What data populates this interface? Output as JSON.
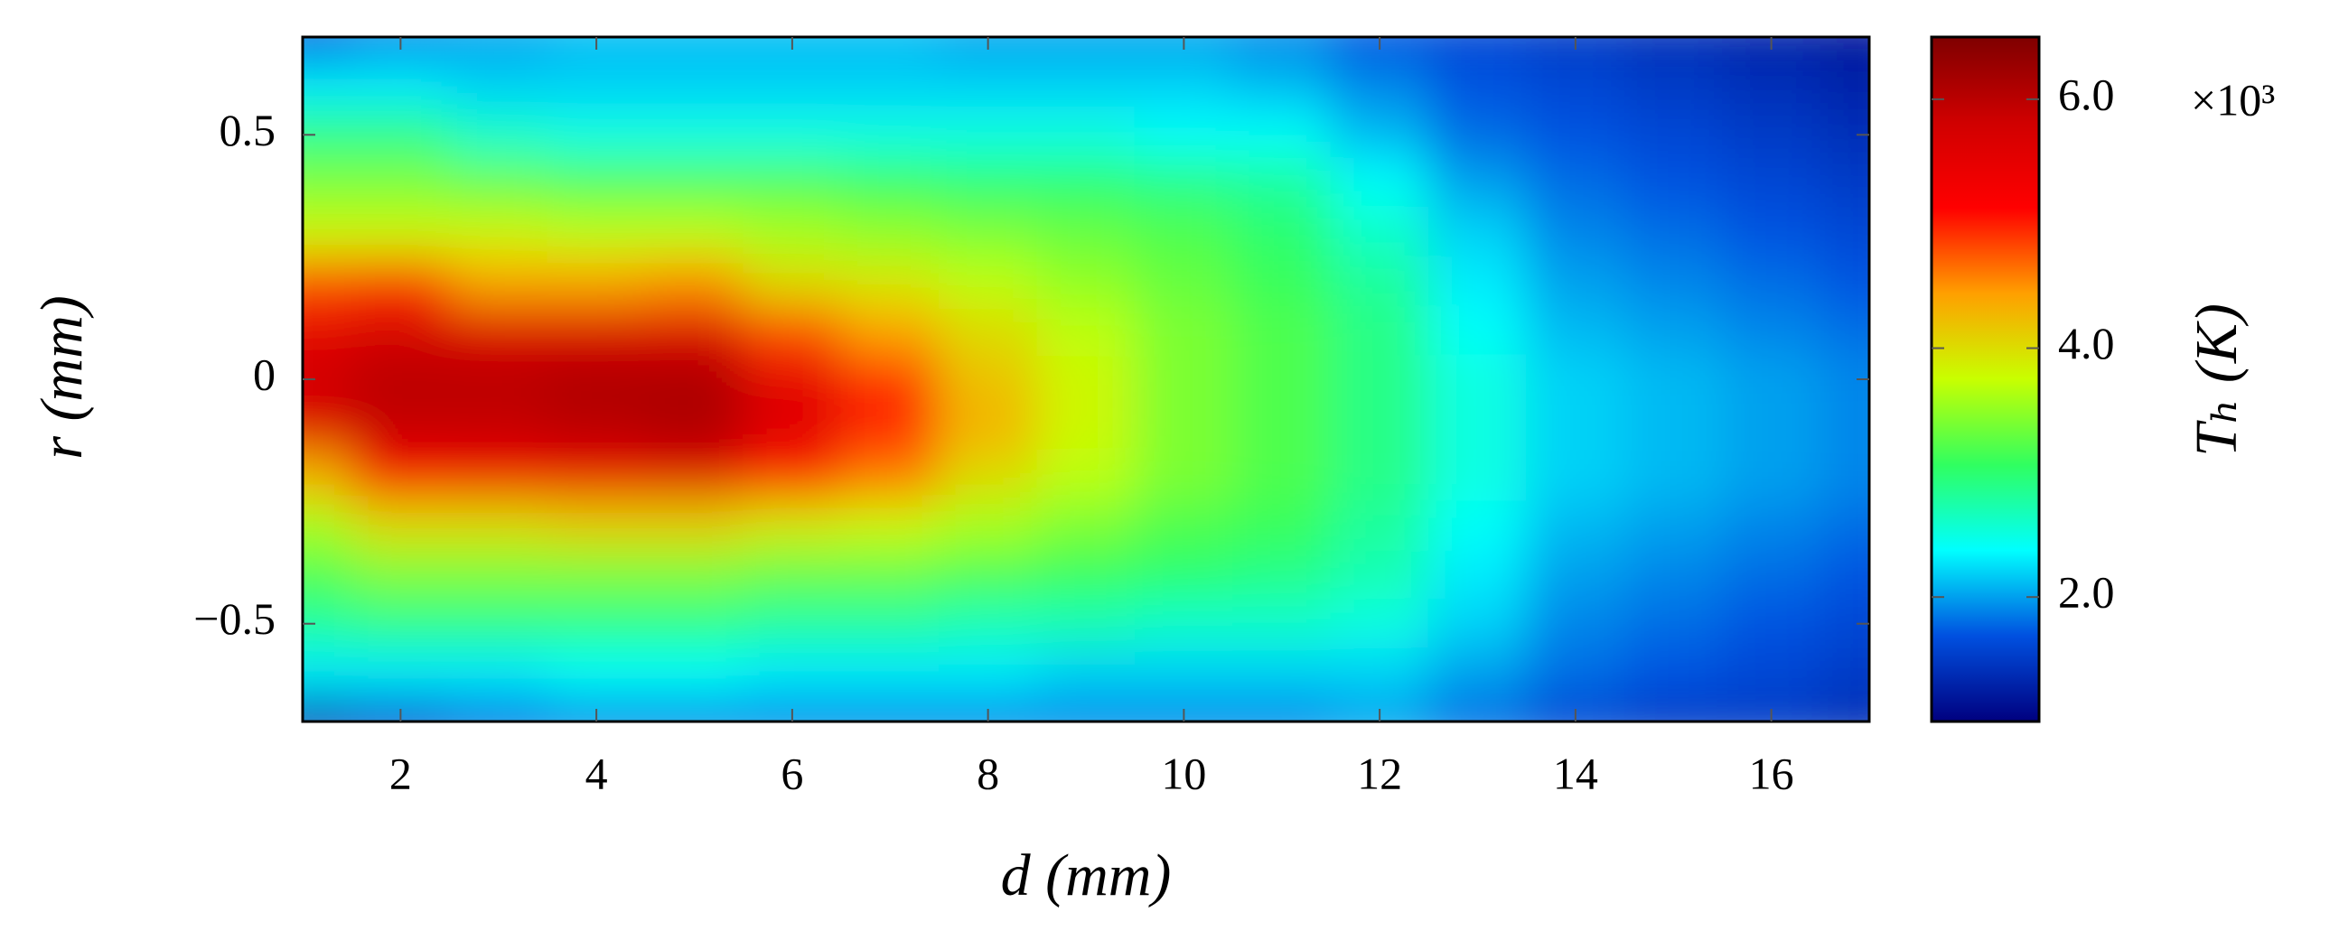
{
  "chart_data": {
    "type": "heatmap",
    "xlabel": "d (mm)",
    "ylabel": "r (mm)",
    "colorbar_label": "Tₕ (K)",
    "colorbar_multiplier": "×10³",
    "x": [
      1,
      2,
      3,
      4,
      5,
      6,
      7,
      8,
      9,
      10,
      11,
      12,
      13,
      14,
      15,
      16,
      17
    ],
    "y": [
      0.7,
      0.6,
      0.5,
      0.4,
      0.3,
      0.2,
      0.1,
      0,
      -0.1,
      -0.2,
      -0.3,
      -0.4,
      -0.5,
      -0.6,
      -0.7
    ],
    "z": [
      [
        1.7,
        1.9,
        2.0,
        2.1,
        2.1,
        2.1,
        2.1,
        2.0,
        2.0,
        2.0,
        1.9,
        1.7,
        1.6,
        1.5,
        1.4,
        1.3,
        1.2
      ],
      [
        2.3,
        2.3,
        2.2,
        2.2,
        2.2,
        2.2,
        2.2,
        2.2,
        2.2,
        2.2,
        2.1,
        1.9,
        1.7,
        1.6,
        1.5,
        1.4,
        1.3
      ],
      [
        2.9,
        2.9,
        2.6,
        2.5,
        2.5,
        2.5,
        2.5,
        2.5,
        2.5,
        2.4,
        2.4,
        2.1,
        1.8,
        1.7,
        1.6,
        1.5,
        1.4
      ],
      [
        3.4,
        3.4,
        3.3,
        3.2,
        3.2,
        3.2,
        3.1,
        3.0,
        3.0,
        2.9,
        2.8,
        2.4,
        2.0,
        1.8,
        1.7,
        1.6,
        1.5
      ],
      [
        3.8,
        3.8,
        3.8,
        3.7,
        3.7,
        3.6,
        3.5,
        3.4,
        3.3,
        3.2,
        3.0,
        2.6,
        2.2,
        1.9,
        1.8,
        1.7,
        1.6
      ],
      [
        4.8,
        4.9,
        4.4,
        4.4,
        4.5,
        4.0,
        3.9,
        3.7,
        3.5,
        3.3,
        3.1,
        2.8,
        2.3,
        2.0,
        1.9,
        1.8,
        1.7
      ],
      [
        5.5,
        5.7,
        5.6,
        5.6,
        5.6,
        4.8,
        4.4,
        4.0,
        3.7,
        3.4,
        3.2,
        2.9,
        2.4,
        2.1,
        2.0,
        1.9,
        1.8
      ],
      [
        5.8,
        6.0,
        6.0,
        6.1,
        6.1,
        5.5,
        4.9,
        4.2,
        3.8,
        3.4,
        3.2,
        2.9,
        2.5,
        2.2,
        2.1,
        2.0,
        1.9
      ],
      [
        5.6,
        5.9,
        5.9,
        6.0,
        6.1,
        5.6,
        5.0,
        4.3,
        3.8,
        3.4,
        3.2,
        2.9,
        2.5,
        2.2,
        2.1,
        2.0,
        1.9
      ],
      [
        4.3,
        5.2,
        5.3,
        5.4,
        5.5,
        5.0,
        4.6,
        4.0,
        3.7,
        3.4,
        3.2,
        2.9,
        2.5,
        2.2,
        2.1,
        2.0,
        1.9
      ],
      [
        3.6,
        4.0,
        4.0,
        4.1,
        4.1,
        3.9,
        3.8,
        3.6,
        3.4,
        3.2,
        3.1,
        2.8,
        2.4,
        2.1,
        2.0,
        1.9,
        1.8
      ],
      [
        3.2,
        3.4,
        3.4,
        3.4,
        3.4,
        3.3,
        3.3,
        3.2,
        3.1,
        3.0,
        2.9,
        2.7,
        2.3,
        2.0,
        1.9,
        1.8,
        1.7
      ],
      [
        2.8,
        2.9,
        2.9,
        2.9,
        2.9,
        2.8,
        2.8,
        2.7,
        2.7,
        2.6,
        2.6,
        2.5,
        2.2,
        1.9,
        1.8,
        1.7,
        1.6
      ],
      [
        2.3,
        2.3,
        2.3,
        2.4,
        2.4,
        2.3,
        2.3,
        2.3,
        2.2,
        2.2,
        2.2,
        2.2,
        2.0,
        1.8,
        1.7,
        1.6,
        1.5
      ],
      [
        1.4,
        1.6,
        1.8,
        1.9,
        1.9,
        1.9,
        1.9,
        1.9,
        1.9,
        1.9,
        1.9,
        2.0,
        1.8,
        1.6,
        1.5,
        1.5,
        1.4
      ]
    ],
    "xlim": [
      1,
      17
    ],
    "ylim": [
      -0.7,
      0.7
    ],
    "clim": [
      1.0,
      6.5
    ],
    "xticks": [
      2,
      4,
      6,
      8,
      10,
      12,
      14,
      16
    ],
    "yticks": [
      {
        "value": -0.5,
        "label": "−0.5"
      },
      0,
      0.5
    ],
    "cticks": [
      {
        "value": 2,
        "label": "2.0"
      },
      {
        "value": 4,
        "label": "4.0"
      },
      {
        "value": 6,
        "label": "6.0"
      }
    ],
    "colormap": [
      "#00007f",
      "#0050e0",
      "#00ffff",
      "#30ff60",
      "#c8ff00",
      "#ffa000",
      "#ff0000",
      "#d00000",
      "#7f0000"
    ]
  }
}
